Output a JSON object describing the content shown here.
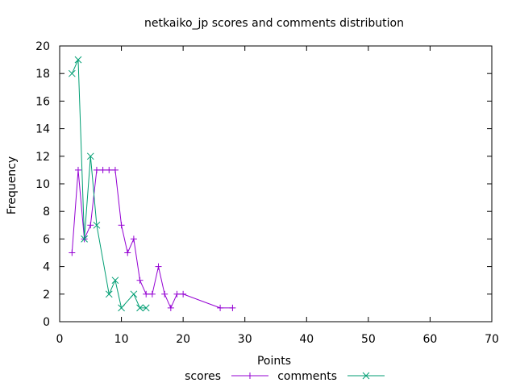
{
  "chart_data": {
    "type": "line",
    "title": "netkaiko_jp scores and comments distribution",
    "xlabel": "Points",
    "ylabel": "Frequency",
    "xlim": [
      0,
      70
    ],
    "ylim": [
      0,
      20
    ],
    "xticks": [
      0,
      10,
      20,
      30,
      40,
      50,
      60,
      70
    ],
    "yticks": [
      0,
      2,
      4,
      6,
      8,
      10,
      12,
      14,
      16,
      18,
      20
    ],
    "grid": false,
    "legend_position": "bottom-center",
    "series": [
      {
        "name": "scores",
        "color": "#9400d3",
        "marker": "plus",
        "x": [
          2,
          3,
          4,
          5,
          6,
          7,
          8,
          9,
          10,
          11,
          12,
          13,
          14,
          15,
          16,
          17,
          18,
          19,
          20,
          26,
          28
        ],
        "y": [
          5,
          11,
          6,
          7,
          11,
          11,
          11,
          11,
          7,
          5,
          6,
          3,
          2,
          2,
          4,
          2,
          1,
          2,
          2,
          1,
          1
        ]
      },
      {
        "name": "comments",
        "color": "#009e73",
        "marker": "cross",
        "x": [
          2,
          3,
          4,
          5,
          6,
          8,
          9,
          10,
          12,
          13,
          14
        ],
        "y": [
          18,
          19,
          6,
          12,
          7,
          2,
          3,
          1,
          2,
          1,
          1
        ]
      }
    ]
  }
}
